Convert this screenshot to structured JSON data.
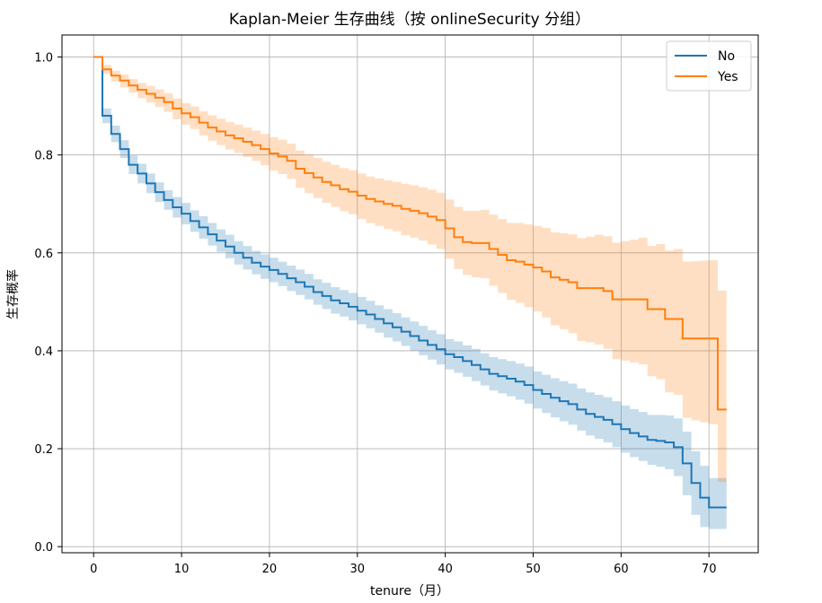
{
  "chart_data": {
    "type": "line",
    "title": "Kaplan-Meier 生存曲线（按 onlineSecurity 分组）",
    "xlabel": "tenure（月）",
    "ylabel": "生存概率",
    "xlim": [
      -3.6,
      75.6
    ],
    "ylim": [
      -0.0125,
      1.045
    ],
    "xticks": [
      0,
      10,
      20,
      30,
      40,
      50,
      60,
      70
    ],
    "yticks": [
      0.0,
      0.2,
      0.4,
      0.6,
      0.8,
      1.0
    ],
    "xtick_labels": [
      "0",
      "10",
      "20",
      "30",
      "40",
      "50",
      "60",
      "70"
    ],
    "ytick_labels": [
      "0.0",
      "0.2",
      "0.4",
      "0.6",
      "0.8",
      "1.0"
    ],
    "grid": true,
    "legend_position": "top-right",
    "step": "post",
    "series": [
      {
        "name": "No",
        "color": "#1f77b4",
        "x": [
          0,
          1,
          2,
          3,
          4,
          5,
          6,
          7,
          8,
          9,
          10,
          11,
          12,
          13,
          14,
          15,
          16,
          17,
          18,
          19,
          20,
          21,
          22,
          23,
          24,
          25,
          26,
          27,
          28,
          29,
          30,
          31,
          32,
          33,
          34,
          35,
          36,
          37,
          38,
          39,
          40,
          41,
          42,
          43,
          44,
          45,
          46,
          47,
          48,
          49,
          50,
          51,
          52,
          53,
          54,
          55,
          56,
          57,
          58,
          59,
          60,
          61,
          62,
          63,
          64,
          65,
          66,
          67,
          68,
          69,
          70,
          71,
          72
        ],
        "y": [
          1.0,
          0.88,
          0.843,
          0.812,
          0.78,
          0.762,
          0.742,
          0.724,
          0.708,
          0.693,
          0.68,
          0.665,
          0.652,
          0.638,
          0.625,
          0.613,
          0.6,
          0.59,
          0.58,
          0.572,
          0.565,
          0.557,
          0.548,
          0.54,
          0.531,
          0.52,
          0.512,
          0.503,
          0.497,
          0.49,
          0.482,
          0.474,
          0.465,
          0.456,
          0.448,
          0.439,
          0.43,
          0.421,
          0.412,
          0.403,
          0.393,
          0.387,
          0.379,
          0.371,
          0.362,
          0.353,
          0.348,
          0.343,
          0.337,
          0.33,
          0.32,
          0.312,
          0.304,
          0.297,
          0.291,
          0.28,
          0.271,
          0.265,
          0.259,
          0.25,
          0.24,
          0.232,
          0.225,
          0.218,
          0.216,
          0.213,
          0.203,
          0.17,
          0.13,
          0.1,
          0.08,
          0.08,
          0.08
        ],
        "ci_lower": [
          1.0,
          0.865,
          0.826,
          0.794,
          0.761,
          0.742,
          0.722,
          0.704,
          0.688,
          0.672,
          0.658,
          0.643,
          0.629,
          0.615,
          0.602,
          0.589,
          0.576,
          0.566,
          0.556,
          0.547,
          0.54,
          0.532,
          0.522,
          0.514,
          0.505,
          0.494,
          0.485,
          0.476,
          0.47,
          0.462,
          0.454,
          0.446,
          0.437,
          0.427,
          0.419,
          0.41,
          0.4,
          0.391,
          0.382,
          0.372,
          0.362,
          0.355,
          0.347,
          0.338,
          0.329,
          0.319,
          0.313,
          0.307,
          0.3,
          0.292,
          0.282,
          0.273,
          0.264,
          0.256,
          0.249,
          0.237,
          0.227,
          0.22,
          0.213,
          0.203,
          0.192,
          0.183,
          0.175,
          0.167,
          0.163,
          0.158,
          0.144,
          0.105,
          0.065,
          0.04,
          0.036,
          0.036,
          0.036
        ],
        "ci_upper": [
          1.0,
          0.895,
          0.86,
          0.83,
          0.799,
          0.782,
          0.762,
          0.744,
          0.728,
          0.714,
          0.702,
          0.687,
          0.675,
          0.661,
          0.648,
          0.637,
          0.624,
          0.614,
          0.604,
          0.597,
          0.59,
          0.582,
          0.574,
          0.566,
          0.557,
          0.546,
          0.539,
          0.53,
          0.524,
          0.518,
          0.51,
          0.502,
          0.493,
          0.485,
          0.477,
          0.468,
          0.46,
          0.451,
          0.442,
          0.434,
          0.424,
          0.419,
          0.411,
          0.404,
          0.395,
          0.387,
          0.383,
          0.379,
          0.374,
          0.368,
          0.358,
          0.351,
          0.344,
          0.338,
          0.333,
          0.323,
          0.315,
          0.31,
          0.305,
          0.297,
          0.288,
          0.281,
          0.275,
          0.269,
          0.269,
          0.268,
          0.262,
          0.235,
          0.195,
          0.165,
          0.14,
          0.14,
          0.14
        ]
      },
      {
        "name": "Yes",
        "color": "#ff7f0e",
        "x": [
          0,
          1,
          2,
          3,
          4,
          5,
          6,
          7,
          8,
          9,
          10,
          11,
          12,
          13,
          14,
          15,
          16,
          17,
          18,
          19,
          20,
          21,
          22,
          23,
          24,
          25,
          26,
          27,
          28,
          29,
          30,
          31,
          32,
          33,
          34,
          35,
          36,
          37,
          38,
          39,
          40,
          41,
          42,
          43,
          44,
          45,
          46,
          47,
          48,
          49,
          50,
          51,
          52,
          53,
          54,
          55,
          56,
          57,
          58,
          59,
          60,
          61,
          62,
          63,
          64,
          65,
          66,
          67,
          68,
          69,
          70,
          71,
          72
        ],
        "y": [
          1.0,
          0.975,
          0.962,
          0.952,
          0.942,
          0.933,
          0.925,
          0.917,
          0.908,
          0.895,
          0.885,
          0.877,
          0.866,
          0.856,
          0.848,
          0.84,
          0.834,
          0.827,
          0.82,
          0.812,
          0.803,
          0.797,
          0.788,
          0.772,
          0.763,
          0.754,
          0.745,
          0.738,
          0.73,
          0.725,
          0.717,
          0.71,
          0.705,
          0.7,
          0.696,
          0.69,
          0.686,
          0.681,
          0.674,
          0.667,
          0.65,
          0.632,
          0.622,
          0.62,
          0.62,
          0.608,
          0.596,
          0.585,
          0.582,
          0.576,
          0.57,
          0.562,
          0.55,
          0.545,
          0.54,
          0.528,
          0.528,
          0.528,
          0.522,
          0.505,
          0.505,
          0.505,
          0.505,
          0.485,
          0.485,
          0.465,
          0.465,
          0.425,
          0.425,
          0.425,
          0.425,
          0.28,
          0.28
        ],
        "ci_lower": [
          1.0,
          0.965,
          0.95,
          0.938,
          0.927,
          0.916,
          0.907,
          0.898,
          0.888,
          0.873,
          0.862,
          0.853,
          0.84,
          0.829,
          0.82,
          0.811,
          0.804,
          0.796,
          0.788,
          0.779,
          0.768,
          0.761,
          0.751,
          0.733,
          0.722,
          0.712,
          0.702,
          0.694,
          0.685,
          0.679,
          0.669,
          0.661,
          0.655,
          0.649,
          0.644,
          0.636,
          0.631,
          0.625,
          0.617,
          0.608,
          0.588,
          0.567,
          0.555,
          0.55,
          0.548,
          0.533,
          0.518,
          0.504,
          0.498,
          0.489,
          0.48,
          0.468,
          0.452,
          0.444,
          0.436,
          0.42,
          0.417,
          0.413,
          0.404,
          0.383,
          0.38,
          0.376,
          0.372,
          0.348,
          0.342,
          0.315,
          0.31,
          0.263,
          0.258,
          0.254,
          0.25,
          0.132,
          0.132
        ],
        "ci_upper": [
          1.0,
          0.984,
          0.972,
          0.964,
          0.955,
          0.947,
          0.941,
          0.934,
          0.926,
          0.915,
          0.906,
          0.899,
          0.889,
          0.881,
          0.874,
          0.867,
          0.862,
          0.856,
          0.85,
          0.843,
          0.836,
          0.831,
          0.823,
          0.809,
          0.801,
          0.794,
          0.786,
          0.78,
          0.773,
          0.769,
          0.762,
          0.756,
          0.752,
          0.748,
          0.745,
          0.741,
          0.738,
          0.734,
          0.729,
          0.723,
          0.709,
          0.694,
          0.686,
          0.686,
          0.688,
          0.678,
          0.669,
          0.661,
          0.661,
          0.658,
          0.655,
          0.651,
          0.642,
          0.64,
          0.638,
          0.63,
          0.633,
          0.637,
          0.634,
          0.621,
          0.624,
          0.627,
          0.631,
          0.614,
          0.618,
          0.605,
          0.608,
          0.582,
          0.583,
          0.584,
          0.585,
          0.523,
          0.523
        ]
      }
    ]
  }
}
